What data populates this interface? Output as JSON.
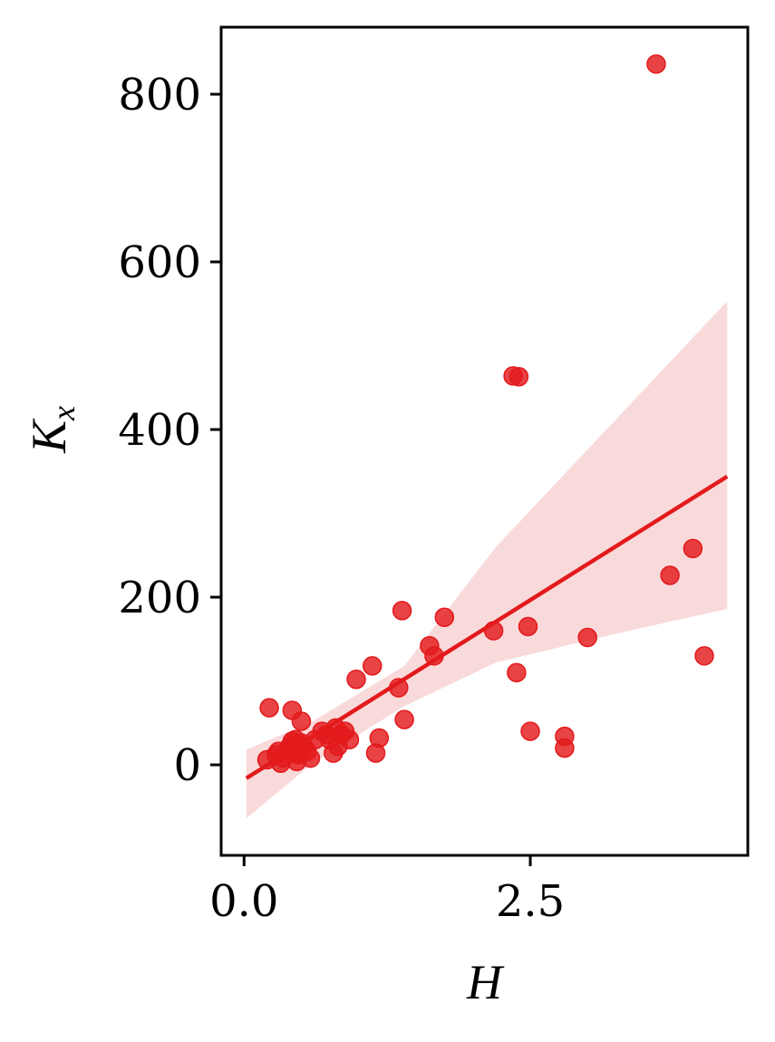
{
  "chart_data": {
    "type": "scatter",
    "xlabel": "H",
    "ylabel_main": "K",
    "ylabel_sub": "x",
    "xlim": [
      -0.2,
      4.4
    ],
    "ylim": [
      -108,
      880
    ],
    "x_ticks": [
      0.0,
      2.5
    ],
    "x_tick_labels": [
      "0.0",
      "2.5"
    ],
    "y_ticks": [
      0,
      200,
      400,
      600,
      800
    ],
    "y_tick_labels": [
      "0",
      "200",
      "400",
      "600",
      "800"
    ],
    "grid": false,
    "legend": "none",
    "colors": {
      "points": "#e31a1c",
      "line": "#e31a1c",
      "band": "#f4b6b8"
    },
    "points": [
      [
        0.2,
        6
      ],
      [
        0.22,
        68
      ],
      [
        0.28,
        12
      ],
      [
        0.3,
        16
      ],
      [
        0.32,
        2
      ],
      [
        0.34,
        8
      ],
      [
        0.38,
        18
      ],
      [
        0.4,
        22
      ],
      [
        0.42,
        65
      ],
      [
        0.42,
        28
      ],
      [
        0.44,
        14
      ],
      [
        0.45,
        30
      ],
      [
        0.46,
        4
      ],
      [
        0.48,
        20
      ],
      [
        0.48,
        12
      ],
      [
        0.5,
        26
      ],
      [
        0.5,
        52
      ],
      [
        0.52,
        22
      ],
      [
        0.55,
        16
      ],
      [
        0.58,
        8
      ],
      [
        0.62,
        30
      ],
      [
        0.68,
        40
      ],
      [
        0.72,
        36
      ],
      [
        0.75,
        30
      ],
      [
        0.78,
        14
      ],
      [
        0.8,
        44
      ],
      [
        0.82,
        22
      ],
      [
        0.85,
        36
      ],
      [
        0.88,
        40
      ],
      [
        0.92,
        30
      ],
      [
        0.98,
        102
      ],
      [
        1.12,
        118
      ],
      [
        1.15,
        14
      ],
      [
        1.18,
        32
      ],
      [
        1.35,
        92
      ],
      [
        1.38,
        184
      ],
      [
        1.4,
        54
      ],
      [
        1.62,
        142
      ],
      [
        1.66,
        130
      ],
      [
        1.75,
        176
      ],
      [
        2.18,
        160
      ],
      [
        2.35,
        464
      ],
      [
        2.4,
        463
      ],
      [
        2.38,
        110
      ],
      [
        2.48,
        165
      ],
      [
        2.5,
        40
      ],
      [
        2.8,
        34
      ],
      [
        2.8,
        20
      ],
      [
        3.0,
        152
      ],
      [
        3.6,
        836
      ],
      [
        3.72,
        226
      ],
      [
        3.92,
        258
      ],
      [
        4.02,
        130
      ]
    ],
    "regression_line": [
      [
        0.02,
        -16
      ],
      [
        4.22,
        344
      ]
    ],
    "confidence_band": {
      "upper": [
        [
          0.02,
          18
        ],
        [
          0.6,
          52
        ],
        [
          1.4,
          118
        ],
        [
          2.2,
          260
        ],
        [
          3.2,
          405
        ],
        [
          4.22,
          553
        ]
      ],
      "lower": [
        [
          0.02,
          -64
        ],
        [
          0.6,
          2
        ],
        [
          1.4,
          70
        ],
        [
          2.2,
          122
        ],
        [
          3.2,
          155
        ],
        [
          4.22,
          186
        ]
      ]
    }
  }
}
